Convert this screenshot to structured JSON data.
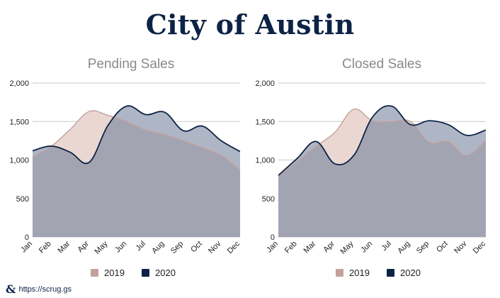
{
  "header": {
    "title": "City of  Austin"
  },
  "footer": {
    "logo_glyph": "&",
    "link_text": "https://scrug.gs"
  },
  "colors": {
    "series_2019_stroke": "#c4a29c",
    "series_2019_fill": "#ead7d2",
    "series_2020_stroke": "#0d2345",
    "series_2020_fill": "#aeb6c6",
    "overlap_fill": "#a2a4b2"
  },
  "chart_data": [
    {
      "type": "area",
      "title": "Pending Sales",
      "categories": [
        "Jan",
        "Feb",
        "Mar",
        "Apr",
        "May",
        "Jun",
        "Jul",
        "Aug",
        "Sep",
        "Oct",
        "Nov",
        "Dec"
      ],
      "ylim": [
        0,
        2000
      ],
      "yticks": [
        0,
        500,
        1000,
        1500,
        2000
      ],
      "ytick_labels": [
        "0",
        "500",
        "1,000",
        "1,500",
        "2,000"
      ],
      "series": [
        {
          "name": "2019",
          "values": [
            1040,
            1180,
            1400,
            1630,
            1580,
            1500,
            1390,
            1330,
            1250,
            1160,
            1060,
            870
          ]
        },
        {
          "name": "2020",
          "values": [
            1120,
            1180,
            1100,
            970,
            1450,
            1700,
            1590,
            1620,
            1380,
            1440,
            1250,
            1110
          ]
        }
      ],
      "legend": [
        "2019",
        "2020"
      ]
    },
    {
      "type": "area",
      "title": "Closed Sales",
      "categories": [
        "Jan",
        "Feb",
        "Mar",
        "Apr",
        "May",
        "Jun",
        "Jul",
        "Aug",
        "Sep",
        "Oct",
        "Nov",
        "Dec"
      ],
      "ylim": [
        0,
        2000
      ],
      "yticks": [
        0,
        500,
        1000,
        1500,
        2000
      ],
      "ytick_labels": [
        "0",
        "500",
        "1,000",
        "1,500",
        "2,000"
      ],
      "series": [
        {
          "name": "2019",
          "values": [
            790,
            980,
            1180,
            1360,
            1660,
            1510,
            1500,
            1500,
            1230,
            1240,
            1060,
            1260
          ]
        },
        {
          "name": "2020",
          "values": [
            800,
            1020,
            1240,
            950,
            1060,
            1560,
            1700,
            1460,
            1510,
            1460,
            1320,
            1390
          ]
        }
      ],
      "legend": [
        "2019",
        "2020"
      ]
    }
  ]
}
